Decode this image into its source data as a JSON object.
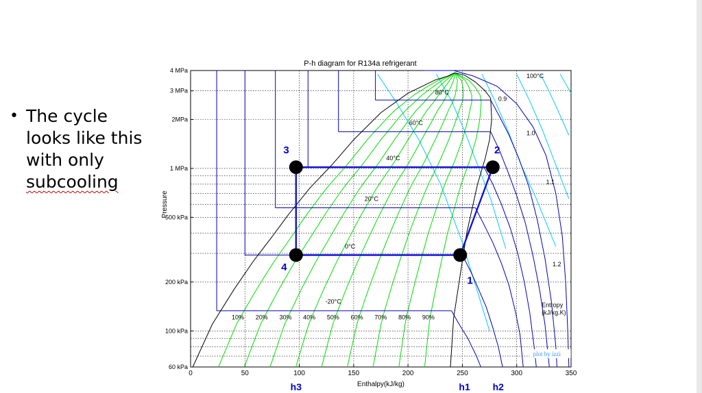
{
  "slide": {
    "bullet_lines": [
      "The cycle",
      "looks like this",
      "with only",
      "subcooling"
    ]
  },
  "chart_data": {
    "type": "diagram",
    "title": "P-h diagram for R134a refrigerant",
    "xlabel": "Enthalpy(kJ/kg)",
    "ylabel": "Pressure",
    "x_scale": "linear",
    "y_scale": "log",
    "xlim": [
      0,
      350
    ],
    "ylim_kPa": [
      60,
      4000
    ],
    "x_ticks": [
      {
        "value": 0,
        "label": "0"
      },
      {
        "value": 50,
        "label": "50"
      },
      {
        "value": 100,
        "label": "100"
      },
      {
        "value": 150,
        "label": "150"
      },
      {
        "value": 200,
        "label": "200"
      },
      {
        "value": 250,
        "label": "250"
      },
      {
        "value": 300,
        "label": "300"
      },
      {
        "value": 350,
        "label": "350"
      }
    ],
    "y_ticks": [
      {
        "value": 60,
        "label": "60 kPa"
      },
      {
        "value": 100,
        "label": "100 kPa"
      },
      {
        "value": 200,
        "label": "200 kPa"
      },
      {
        "value": 500,
        "label": "500 kPa"
      },
      {
        "value": 1000,
        "label": "1 MPa"
      },
      {
        "value": 2000,
        "label": "2MPa"
      },
      {
        "value": 3000,
        "label": "3 MPa"
      },
      {
        "value": 4000,
        "label": "4 MPa"
      }
    ],
    "saturation_dome": {
      "liquid": [
        [
          2,
          60
        ],
        [
          20,
          110
        ],
        [
          40,
          180
        ],
        [
          58,
          270
        ],
        [
          75,
          380
        ],
        [
          90,
          520
        ],
        [
          110,
          760
        ],
        [
          130,
          1050
        ],
        [
          150,
          1500
        ],
        [
          175,
          2200
        ],
        [
          200,
          2900
        ],
        [
          225,
          3500
        ],
        [
          237,
          3700
        ],
        [
          240,
          3800
        ],
        [
          243,
          3870
        ]
      ],
      "vapor": [
        [
          243,
          3870
        ],
        [
          252,
          3750
        ],
        [
          262,
          3400
        ],
        [
          271,
          3000
        ],
        [
          276,
          2700
        ],
        [
          277,
          2000
        ],
        [
          275,
          1500
        ],
        [
          271,
          1150
        ],
        [
          264,
          800
        ],
        [
          254,
          400
        ],
        [
          247,
          200
        ],
        [
          242,
          120
        ],
        [
          239,
          60
        ]
      ]
    },
    "isotherms": [
      {
        "label": "-20°C",
        "P": 133,
        "h_liq": 24,
        "h_vap": 240,
        "sub": [
          [
            24,
            1000000
          ],
          [
            24,
            133
          ]
        ],
        "sup": [
          [
            240,
            133
          ],
          [
            247,
            110
          ],
          [
            255,
            90
          ],
          [
            263,
            70
          ],
          [
            267,
            60
          ]
        ]
      },
      {
        "label": "0°C",
        "P": 293,
        "h_liq": 50,
        "h_vap": 250,
        "sub": [
          [
            50,
            1000000
          ],
          [
            50,
            293
          ]
        ],
        "sup": [
          [
            250,
            293
          ],
          [
            258,
            230
          ],
          [
            265,
            180
          ],
          [
            272,
            140
          ],
          [
            278,
            105
          ],
          [
            283,
            80
          ],
          [
            287,
            60
          ]
        ]
      },
      {
        "label": "20°C",
        "P": 572,
        "h_liq": 78,
        "h_vap": 262,
        "sub": [
          [
            78,
            1000000
          ],
          [
            78,
            572
          ]
        ],
        "sup": [
          [
            262,
            572
          ],
          [
            270,
            450
          ],
          [
            278,
            350
          ],
          [
            286,
            260
          ],
          [
            293,
            190
          ],
          [
            299,
            130
          ],
          [
            303,
            95
          ],
          [
            306,
            60
          ]
        ]
      },
      {
        "label": "40°C",
        "P": 1017,
        "h_liq": 108,
        "h_vap": 270,
        "sub": [
          [
            108,
            1000000
          ],
          [
            108,
            1017
          ]
        ],
        "sup": [
          [
            270,
            1017
          ],
          [
            278,
            800
          ],
          [
            286,
            600
          ],
          [
            294,
            430
          ],
          [
            301,
            300
          ],
          [
            307,
            200
          ],
          [
            312,
            130
          ],
          [
            316,
            80
          ],
          [
            318,
            60
          ]
        ]
      },
      {
        "label": "60°C",
        "P": 1682,
        "h_liq": 136,
        "h_vap": 276,
        "sub": [
          [
            136,
            1000000
          ],
          [
            136,
            1682
          ]
        ],
        "sup": [
          [
            276,
            1682
          ],
          [
            284,
            1300
          ],
          [
            292,
            950
          ],
          [
            300,
            680
          ],
          [
            308,
            460
          ],
          [
            315,
            290
          ],
          [
            321,
            180
          ],
          [
            326,
            110
          ],
          [
            329,
            70
          ],
          [
            330,
            60
          ]
        ]
      },
      {
        "label": "80°C",
        "P": 2633,
        "h_liq": 170,
        "h_vap": 276,
        "sub": [
          [
            170,
            1000000
          ],
          [
            170,
            2633
          ]
        ],
        "sup": [
          [
            276,
            2633
          ],
          [
            284,
            2100
          ],
          [
            293,
            1600
          ],
          [
            302,
            1150
          ],
          [
            311,
            780
          ],
          [
            319,
            480
          ],
          [
            326,
            280
          ],
          [
            332,
            150
          ],
          [
            336,
            80
          ],
          [
            337,
            60
          ]
        ]
      },
      {
        "label": "100°C",
        "P": 4000,
        "h_liq": 215,
        "h_vap": 250,
        "sub": [],
        "sup": [
          [
            242,
            4000
          ],
          [
            260,
            3700
          ],
          [
            282,
            3200
          ],
          [
            300,
            2500
          ],
          [
            315,
            1800
          ],
          [
            327,
            1200
          ],
          [
            336,
            700
          ],
          [
            342,
            380
          ],
          [
            345,
            200
          ],
          [
            347,
            100
          ],
          [
            348,
            60
          ]
        ]
      }
    ],
    "isotherm_labels": [
      {
        "label": "100°C",
        "h": 309,
        "P": 3600
      },
      {
        "label": "80°C",
        "h": 225,
        "P": 2850
      },
      {
        "label": "60°C",
        "h": 201,
        "P": 1850
      },
      {
        "label": "40°C",
        "h": 180,
        "P": 1120
      },
      {
        "label": "20°C",
        "h": 160,
        "P": 630
      },
      {
        "label": "0°C",
        "h": 142,
        "P": 322
      },
      {
        "label": "-20°C",
        "h": 124,
        "P": 147
      }
    ],
    "quality_lines": [
      {
        "label": "10%",
        "steps": 10
      },
      {
        "label": "20%",
        "steps": 20
      },
      {
        "label": "30%",
        "steps": 30
      },
      {
        "label": "40%",
        "steps": 40
      },
      {
        "label": "50%",
        "steps": 50
      },
      {
        "label": "60%",
        "steps": 60
      },
      {
        "label": "70%",
        "steps": 70
      },
      {
        "label": "80%",
        "steps": 80
      },
      {
        "label": "90%",
        "steps": 90
      }
    ],
    "isentropes": [
      {
        "label": "0.9",
        "points": [
          [
            172,
            3800
          ],
          [
            190,
            2500
          ],
          [
            210,
            1500
          ],
          [
            230,
            800
          ],
          [
            250,
            350
          ],
          [
            275,
            100
          ]
        ]
      },
      {
        "label": "1.0",
        "points": [
          [
            226,
            3800
          ],
          [
            240,
            2600
          ],
          [
            252,
            1700
          ],
          [
            264,
            1050
          ],
          [
            276,
            650
          ],
          [
            290,
            320
          ]
        ]
      },
      {
        "label": "1.1",
        "points": [
          [
            268,
            3800
          ],
          [
            280,
            2600
          ],
          [
            292,
            1700
          ],
          [
            304,
            1050
          ],
          [
            318,
            650
          ],
          [
            336,
            330
          ]
        ]
      },
      {
        "label": "1.2",
        "points": [
          [
            300,
            3800
          ],
          [
            312,
            2600
          ],
          [
            324,
            1700
          ],
          [
            336,
            1050
          ],
          [
            348,
            650
          ]
        ]
      },
      {
        "label": "",
        "points": [
          [
            322,
            3800
          ],
          [
            334,
            2600
          ],
          [
            348,
            1600
          ]
        ]
      },
      {
        "label": "",
        "points": [
          [
            340,
            3800
          ],
          [
            350,
            2900
          ]
        ]
      }
    ],
    "isentrope_labels": [
      {
        "label": "0.9",
        "h": 283,
        "P": 2600
      },
      {
        "label": "1.0",
        "h": 309,
        "P": 1600
      },
      {
        "label": "1.1",
        "h": 327,
        "P": 800
      },
      {
        "label": "1.2",
        "h": 333,
        "P": 250
      }
    ],
    "entropy_note": [
      "Entropy",
      "(kJ/kg.K)"
    ],
    "cycle": {
      "points": [
        {
          "id": "1",
          "h": 248,
          "P": 293
        },
        {
          "id": "2",
          "h": 278,
          "P": 1017
        },
        {
          "id": "3",
          "h": 97,
          "P": 1017
        },
        {
          "id": "4",
          "h": 97,
          "P": 293
        }
      ],
      "point_labels": [
        {
          "label": "1",
          "h": 257,
          "P": 195
        },
        {
          "label": "2",
          "h": 282,
          "P": 1240
        },
        {
          "label": "3",
          "h": 88,
          "P": 1240
        },
        {
          "label": "4",
          "h": 86,
          "P": 235
        }
      ]
    },
    "h_markers": [
      {
        "label": "h3",
        "h": 97
      },
      {
        "label": "h1",
        "h": 252
      },
      {
        "label": "h2",
        "h": 283
      }
    ],
    "credit": "plot by izzi",
    "colors": {
      "dome": "#000000",
      "isotherm": "#0000bb",
      "quality": "#00dd00",
      "isentrope": "#00ccff",
      "cycle": "#1111dd",
      "point": "#000000",
      "label": "#0000cc",
      "credit": "#3399ff",
      "grid": "#000000"
    }
  }
}
